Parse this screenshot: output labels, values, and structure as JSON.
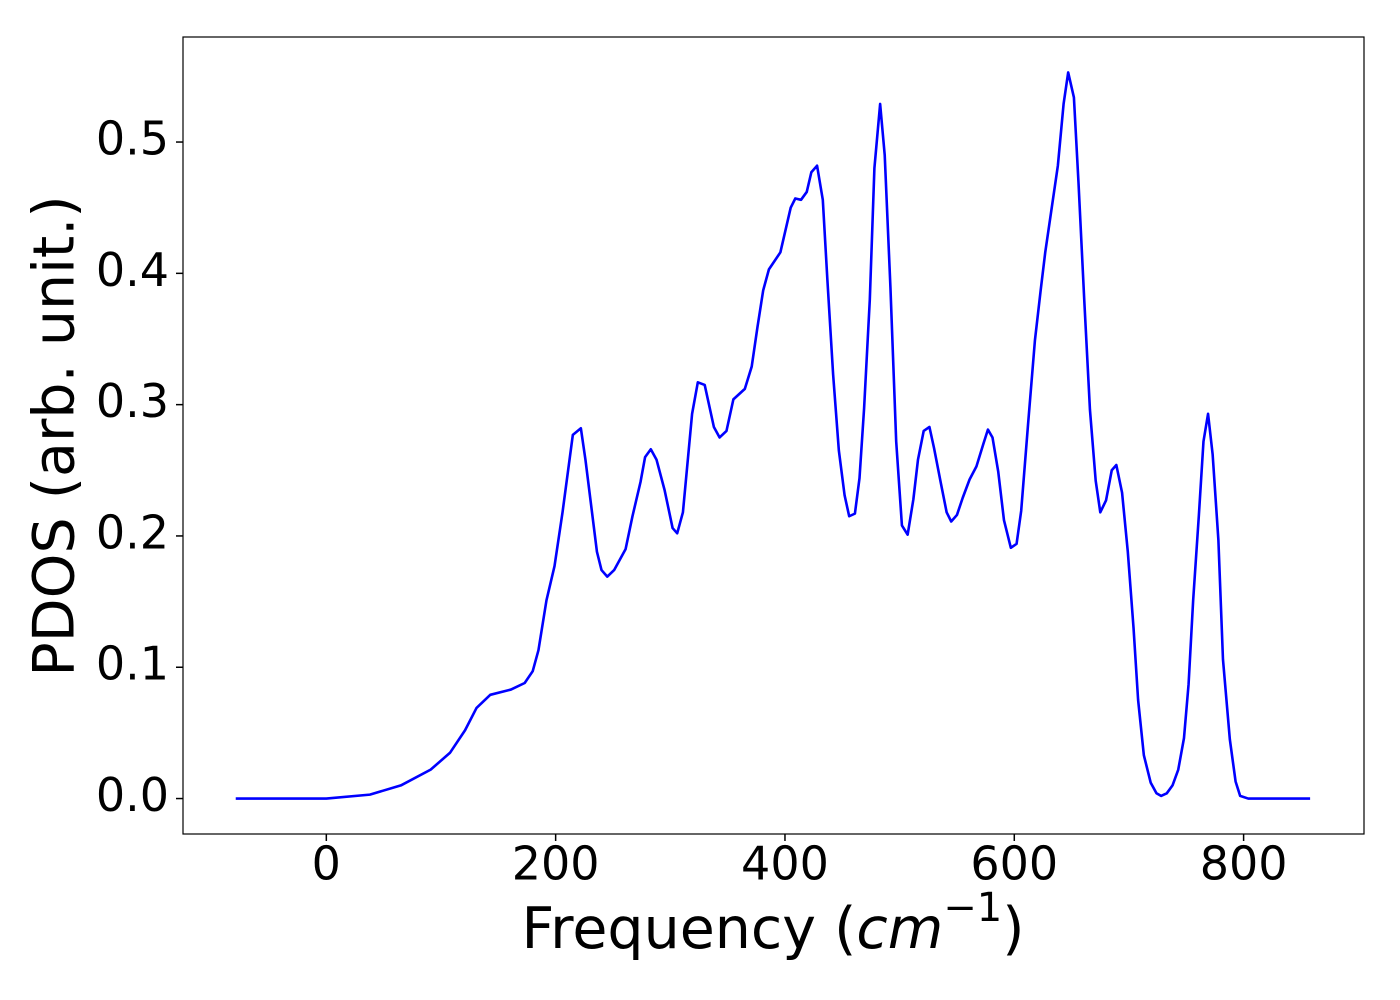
{
  "chart_data": {
    "type": "line",
    "xlabel": [
      "Frequency (",
      "cm",
      "−1",
      ")"
    ],
    "ylabel": "PDOS (arb. unit.)",
    "color": "#0000ff",
    "xlim": [
      -125,
      905
    ],
    "ylim": [
      -0.027,
      0.58
    ],
    "xticks": [
      0,
      200,
      400,
      600,
      800
    ],
    "yticks": [
      {
        "value": 0,
        "label": "0.0"
      },
      0.1,
      0.2,
      0.3,
      0.4,
      0.5
    ],
    "x": [
      -79,
      0,
      38,
      65,
      91,
      108,
      121,
      131,
      143,
      161,
      173,
      180,
      185,
      192,
      199,
      206,
      215,
      222,
      226,
      236,
      240,
      245,
      251,
      261,
      267,
      274,
      278,
      283,
      288,
      295,
      302,
      306,
      311,
      319,
      324,
      330,
      338,
      343,
      349,
      355,
      365,
      371,
      376,
      381,
      386,
      396,
      405,
      409,
      414,
      419,
      423,
      428,
      433,
      437,
      442,
      447,
      452,
      456,
      461,
      465,
      469,
      474,
      478,
      483,
      487,
      492,
      497,
      502,
      507,
      512,
      516,
      521,
      526,
      530,
      536,
      541,
      545,
      550,
      555,
      561,
      567,
      573,
      577,
      581,
      586,
      591,
      597,
      602,
      606,
      612,
      618,
      623,
      627,
      632,
      638,
      643,
      647,
      652,
      656,
      661,
      666,
      671,
      675,
      680,
      685,
      689,
      694,
      699,
      704,
      708,
      713,
      719,
      724,
      728,
      733,
      738,
      743,
      748,
      752,
      756,
      761,
      765,
      769,
      773,
      778,
      782,
      788,
      793,
      797,
      804,
      858
    ],
    "values": [
      0,
      0,
      0.003,
      0.01,
      0.022,
      0.035,
      0.052,
      0.069,
      0.079,
      0.083,
      0.088,
      0.097,
      0.113,
      0.151,
      0.177,
      0.218,
      0.277,
      0.282,
      0.258,
      0.188,
      0.174,
      0.169,
      0.174,
      0.19,
      0.215,
      0.241,
      0.26,
      0.266,
      0.258,
      0.235,
      0.206,
      0.202,
      0.218,
      0.293,
      0.317,
      0.315,
      0.283,
      0.275,
      0.28,
      0.304,
      0.312,
      0.329,
      0.359,
      0.387,
      0.403,
      0.416,
      0.45,
      0.457,
      0.456,
      0.462,
      0.477,
      0.482,
      0.456,
      0.395,
      0.323,
      0.265,
      0.231,
      0.215,
      0.217,
      0.244,
      0.297,
      0.38,
      0.48,
      0.529,
      0.49,
      0.389,
      0.272,
      0.208,
      0.201,
      0.228,
      0.258,
      0.28,
      0.283,
      0.267,
      0.24,
      0.218,
      0.211,
      0.216,
      0.229,
      0.243,
      0.253,
      0.27,
      0.281,
      0.275,
      0.249,
      0.212,
      0.191,
      0.194,
      0.219,
      0.285,
      0.349,
      0.387,
      0.416,
      0.446,
      0.482,
      0.529,
      0.553,
      0.534,
      0.469,
      0.38,
      0.296,
      0.242,
      0.218,
      0.227,
      0.25,
      0.254,
      0.233,
      0.188,
      0.13,
      0.075,
      0.033,
      0.012,
      0.004,
      0.002,
      0.004,
      0.01,
      0.022,
      0.046,
      0.087,
      0.151,
      0.216,
      0.272,
      0.293,
      0.262,
      0.197,
      0.106,
      0.045,
      0.013,
      0.002,
      0,
      0
    ]
  }
}
